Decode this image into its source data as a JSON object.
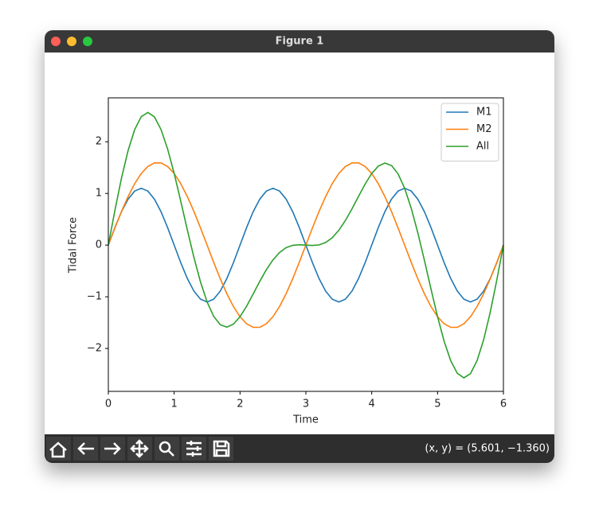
{
  "window": {
    "title": "Figure 1",
    "status": "(x, y) = (5.601, −1.360)"
  },
  "chart_data": {
    "type": "line",
    "xlabel": "Time",
    "ylabel": "Tidal Force",
    "x": [
      0,
      0.1,
      0.2,
      0.3,
      0.4,
      0.5,
      0.6,
      0.7,
      0.8,
      0.9,
      1,
      1.1,
      1.2,
      1.3,
      1.4,
      1.5,
      1.6,
      1.7,
      1.8,
      1.9,
      2,
      2.1,
      2.2,
      2.3,
      2.4,
      2.5,
      2.6,
      2.7,
      2.8,
      2.9,
      3,
      3.1,
      3.2,
      3.3,
      3.4,
      3.5,
      3.6,
      3.7,
      3.8,
      3.9,
      4,
      4.1,
      4.2,
      4.3,
      4.4,
      4.5,
      4.6,
      4.7,
      4.8,
      4.9,
      5,
      5.1,
      5.2,
      5.3,
      5.4,
      5.5,
      5.6,
      5.7,
      5.8,
      5.9,
      6
    ],
    "series": [
      {
        "name": "M1",
        "color": "#1f77b4",
        "values": [
          0,
          0.34,
          0.647,
          0.89,
          1.046,
          1.1,
          1.046,
          0.89,
          0.647,
          0.34,
          0,
          -0.34,
          -0.647,
          -0.89,
          -1.046,
          -1.1,
          -1.046,
          -0.89,
          -0.647,
          -0.34,
          0,
          0.34,
          0.647,
          0.89,
          1.046,
          1.1,
          1.046,
          0.89,
          0.647,
          0.34,
          0,
          -0.34,
          -0.647,
          -0.89,
          -1.046,
          -1.1,
          -1.046,
          -0.89,
          -0.647,
          -0.34,
          0,
          0.34,
          0.647,
          0.89,
          1.046,
          1.1,
          1.046,
          0.89,
          0.647,
          0.34,
          0,
          -0.34,
          -0.647,
          -0.89,
          -1.046,
          -1.1,
          -1.046,
          -0.89,
          -0.647,
          -0.34,
          0
        ]
      },
      {
        "name": "M2",
        "color": "#ff7f0e",
        "values": [
          0,
          0.333,
          0.651,
          0.94,
          1.189,
          1.386,
          1.522,
          1.591,
          1.591,
          1.522,
          1.386,
          1.189,
          0.94,
          0.651,
          0.333,
          0,
          -0.333,
          -0.651,
          -0.94,
          -1.189,
          -1.386,
          -1.522,
          -1.591,
          -1.591,
          -1.522,
          -1.386,
          -1.189,
          -0.94,
          -0.651,
          -0.333,
          0,
          0.333,
          0.651,
          0.94,
          1.189,
          1.386,
          1.522,
          1.591,
          1.591,
          1.522,
          1.386,
          1.189,
          0.94,
          0.651,
          0.333,
          0,
          -0.333,
          -0.651,
          -0.94,
          -1.189,
          -1.386,
          -1.522,
          -1.591,
          -1.591,
          -1.522,
          -1.386,
          -1.189,
          -0.94,
          -0.651,
          -0.333,
          0
        ]
      },
      {
        "name": "All",
        "color": "#2ca02c",
        "values": [
          0,
          0.673,
          1.298,
          1.83,
          2.235,
          2.486,
          2.568,
          2.481,
          2.238,
          1.862,
          1.386,
          0.849,
          0.293,
          -0.239,
          -0.713,
          -1.1,
          -1.379,
          -1.541,
          -1.587,
          -1.529,
          -1.386,
          -1.182,
          -0.944,
          -0.701,
          -0.476,
          -0.286,
          -0.143,
          -0.05,
          -0.004,
          0.007,
          0,
          -0.007,
          0.004,
          0.05,
          0.143,
          0.286,
          0.476,
          0.701,
          0.944,
          1.182,
          1.386,
          1.529,
          1.587,
          1.541,
          1.379,
          1.1,
          0.713,
          0.239,
          -0.293,
          -0.849,
          -1.386,
          -1.862,
          -2.238,
          -2.481,
          -2.568,
          -2.486,
          -2.235,
          -1.83,
          -1.298,
          -0.673,
          0
        ]
      }
    ],
    "xlim": [
      0,
      6
    ],
    "ylim": [
      -2.83,
      2.85
    ],
    "xticks": [
      0,
      1,
      2,
      3,
      4,
      5,
      6
    ],
    "yticks": [
      {
        "value": -2,
        "label": "−2"
      },
      {
        "value": -1,
        "label": "−1"
      },
      0,
      1,
      2
    ],
    "legend": "upper right"
  }
}
